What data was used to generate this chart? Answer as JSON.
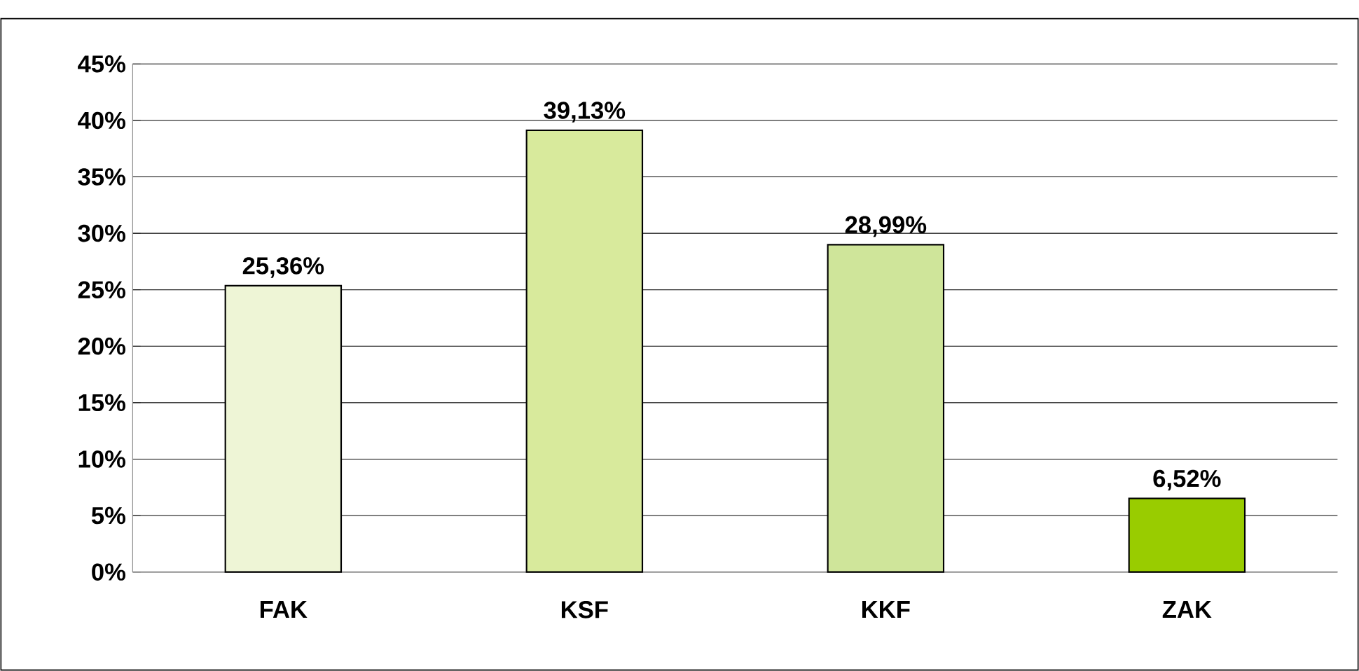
{
  "chart_data": {
    "type": "bar",
    "categories": [
      "FAK",
      "KSF",
      "KKF",
      "ZAK"
    ],
    "values": [
      25.36,
      39.13,
      28.99,
      6.52
    ],
    "colors": [
      "#eef5d6",
      "#d8ea9c",
      "#cfe59a",
      "#99cc00"
    ],
    "value_labels": [
      "25,36%",
      "39,13%",
      "28,99%",
      "6,52%"
    ],
    "ylim": [
      0,
      45
    ],
    "yticks": [
      {
        "value": 0,
        "label": "0%"
      },
      {
        "value": 5,
        "label": "5%"
      },
      {
        "value": 10,
        "label": "10%"
      },
      {
        "value": 15,
        "label": "15%"
      },
      {
        "value": 20,
        "label": "20%"
      },
      {
        "value": 25,
        "label": "25%"
      },
      {
        "value": 30,
        "label": "30%"
      },
      {
        "value": 35,
        "label": "35%"
      },
      {
        "value": 40,
        "label": "40%"
      },
      {
        "value": 45,
        "label": "45%"
      }
    ],
    "grid": "y"
  }
}
